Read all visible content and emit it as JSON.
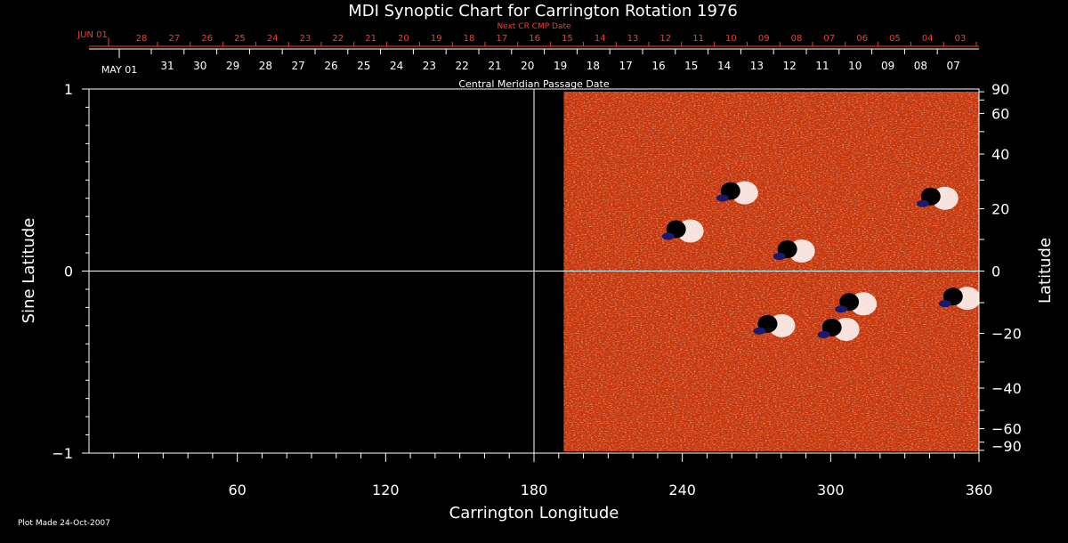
{
  "chart_data": {
    "type": "heatmap",
    "title": "MDI Synoptic Chart for Carrington Rotation 1976",
    "xlabel": "Carrington Longitude",
    "ylabel_left": "Sine Latitude",
    "ylabel_right": "Latitude",
    "xlim": [
      0,
      360
    ],
    "ylim": [
      -1,
      1
    ],
    "x_ticks": [
      60,
      120,
      180,
      240,
      300,
      360
    ],
    "y_ticks_left": [
      "1",
      "0",
      "−1"
    ],
    "y_ticks_left_values": [
      1,
      0,
      -1
    ],
    "y_ticks_right": [
      90,
      60,
      40,
      20,
      0,
      -20,
      -40,
      -60,
      -90
    ],
    "data_start_longitude": 192,
    "grid": false,
    "reference_lines": {
      "equator_sine_latitude": 0,
      "vertical_longitude": 180
    },
    "colors": {
      "background": "#000000",
      "text": "#ffffff",
      "top_axis_red": "#ff3b1e",
      "magnetogram_base": "#c8340a",
      "positive_polarity": "#ffffff",
      "negative_polarity": "#000000",
      "mid_tone": "#1a1a6e"
    },
    "top_axis": {
      "caption": "Next CR CMP Date",
      "month_label": "JUN 01",
      "dates": [
        "28",
        "27",
        "26",
        "25",
        "24",
        "23",
        "22",
        "21",
        "20",
        "19",
        "18",
        "17",
        "16",
        "15",
        "14",
        "13",
        "12",
        "11",
        "10",
        "09",
        "08",
        "07",
        "06",
        "05",
        "04",
        "03"
      ]
    },
    "cmp_axis": {
      "caption": "Central Meridian Passage Date",
      "month_label": "MAY 01",
      "dates": [
        "31",
        "30",
        "29",
        "28",
        "27",
        "26",
        "25",
        "24",
        "23",
        "22",
        "21",
        "20",
        "19",
        "18",
        "17",
        "16",
        "15",
        "14",
        "13",
        "12",
        "11",
        "10",
        "09",
        "08",
        "07"
      ]
    },
    "active_regions": [
      {
        "lon": 240,
        "sine_lat": 0.22
      },
      {
        "lon": 285,
        "sine_lat": 0.11
      },
      {
        "lon": 262,
        "sine_lat": 0.43
      },
      {
        "lon": 343,
        "sine_lat": 0.4
      },
      {
        "lon": 277,
        "sine_lat": -0.3
      },
      {
        "lon": 303,
        "sine_lat": -0.32
      },
      {
        "lon": 310,
        "sine_lat": -0.18
      },
      {
        "lon": 352,
        "sine_lat": -0.15
      }
    ]
  },
  "footer": {
    "plot_made": "Plot Made 24-Oct-2007"
  }
}
